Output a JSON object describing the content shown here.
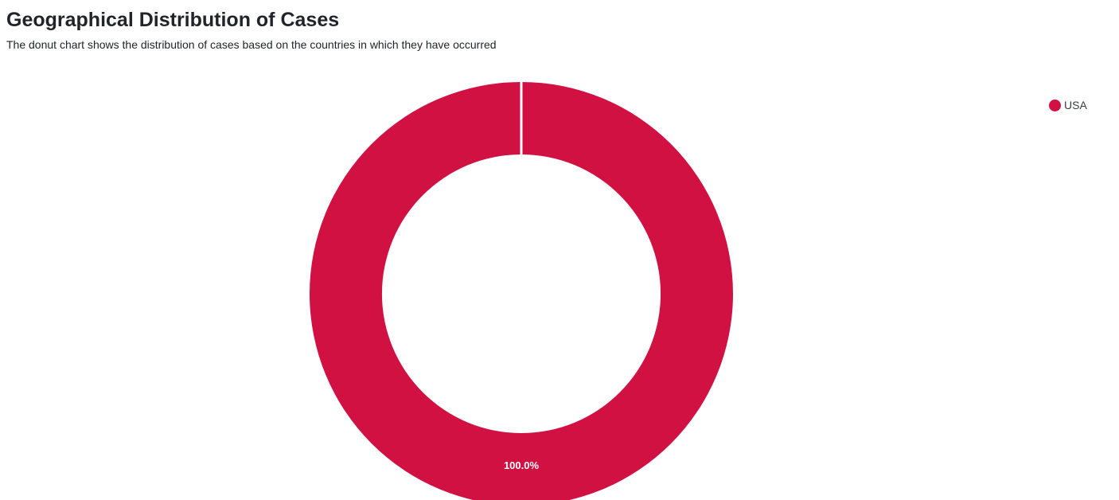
{
  "header": {
    "title": "Geographical Distribution of Cases",
    "subtitle": "The donut chart shows the distribution of cases based on the countries in which they have occurred"
  },
  "colors": {
    "series": [
      "#d01142"
    ],
    "slice_border": "#ffffff",
    "label_text": "#ffffff"
  },
  "chart_data": {
    "type": "pie",
    "variant": "donut",
    "labels": [
      "USA"
    ],
    "values": [
      100.0
    ],
    "data_labels": [
      "100.0%"
    ],
    "legend_position": "top-right",
    "title": "Geographical Distribution of Cases",
    "subtitle": "The donut chart shows the distribution of cases based on the countries in which they have occurred"
  }
}
